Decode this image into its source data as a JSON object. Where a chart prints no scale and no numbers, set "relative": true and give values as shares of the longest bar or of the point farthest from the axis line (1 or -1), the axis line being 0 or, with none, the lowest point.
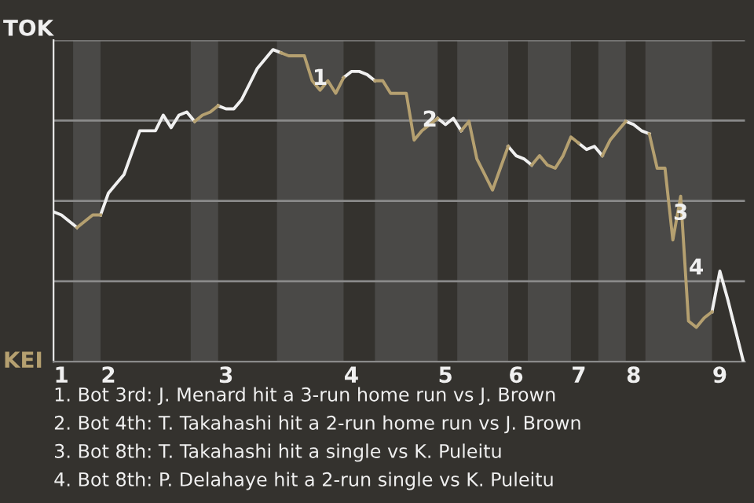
{
  "chart_data": {
    "type": "line",
    "relative": true,
    "categories": [
      null,
      "1",
      null,
      null,
      null,
      null,
      null,
      "2",
      null,
      null,
      null,
      null,
      null,
      null,
      null,
      null,
      null,
      null,
      null,
      null,
      null,
      null,
      "3",
      null,
      null,
      null,
      null,
      null,
      null,
      null,
      null,
      null,
      null,
      null,
      null,
      null,
      null,
      null,
      "4",
      null,
      null,
      null,
      null,
      null,
      null,
      null,
      null,
      null,
      null,
      null,
      "5",
      null,
      null,
      null,
      null,
      null,
      null,
      null,
      null,
      "6",
      null,
      null,
      null,
      null,
      null,
      null,
      null,
      "7",
      null,
      null,
      null,
      null,
      null,
      null,
      "8",
      null,
      null,
      null,
      null,
      null,
      null,
      null,
      null,
      null,
      null,
      "9",
      null,
      null,
      null
    ],
    "series": [
      {
        "name": "TOK",
        "color": "#f0f0f0",
        "values": [
          0.48,
          0.47,
          0.45,
          0.43,
          null,
          null,
          0.47,
          0.54,
          0.57,
          0.6,
          0.67,
          0.74,
          0.74,
          0.74,
          0.79,
          0.75,
          0.79,
          0.8,
          0.77,
          null,
          null,
          0.82,
          0.81,
          0.81,
          0.84,
          0.89,
          0.94,
          0.97,
          1,
          0.99,
          null,
          null,
          null,
          null,
          null,
          null,
          null,
          0.91,
          0.93,
          0.93,
          0.92,
          0.9,
          null,
          null,
          null,
          null,
          null,
          null,
          null,
          0.78,
          0.76,
          0.78,
          0.74,
          null,
          null,
          null,
          null,
          null,
          0.69,
          0.66,
          0.65,
          0.63,
          null,
          null,
          null,
          null,
          null,
          0.7,
          0.68,
          0.69,
          0.66,
          null,
          null,
          0.77,
          0.76,
          0.74,
          0.73,
          null,
          null,
          null,
          null,
          null,
          null,
          null,
          0.16,
          0.29,
          0.2,
          0.1,
          0
        ]
      },
      {
        "name": "KEI",
        "color": "#b5a070",
        "values": [
          null,
          null,
          null,
          0.43,
          0.45,
          0.47,
          0.47,
          null,
          null,
          null,
          null,
          null,
          null,
          null,
          null,
          null,
          null,
          null,
          0.77,
          0.79,
          0.8,
          0.82,
          null,
          null,
          null,
          null,
          null,
          null,
          null,
          0.99,
          0.98,
          0.98,
          0.98,
          0.9,
          0.87,
          0.9,
          0.86,
          0.91,
          null,
          null,
          null,
          0.9,
          0.9,
          0.86,
          0.86,
          0.86,
          0.71,
          0.74,
          0.76,
          0.78,
          null,
          null,
          0.74,
          0.77,
          0.65,
          0.6,
          0.55,
          0.62,
          0.69,
          null,
          null,
          0.63,
          0.66,
          0.63,
          0.62,
          0.66,
          0.72,
          0.7,
          null,
          null,
          0.66,
          0.71,
          0.74,
          0.77,
          null,
          null,
          0.73,
          0.62,
          0.62,
          0.39,
          0.53,
          0.13,
          0.11,
          0.14,
          0.16,
          null,
          null,
          null,
          null
        ]
      }
    ],
    "annotations": [
      "1",
      "2",
      "3",
      "4",
      "1. Bot 3rd: J. Menard hit a 3-run home run vs J. Brown",
      "2. Bot 4th: T. Takahashi hit a 2-run home run vs J. Brown",
      "3. Bot 8th: T. Takahashi hit a single vs K. Puleitu",
      "4. Bot 8th: P. Delahaye hit a 2-run single vs K. Puleitu"
    ],
    "grid": "y",
    "legend": "left",
    "marker": "none",
    "line_style": "solid"
  }
}
